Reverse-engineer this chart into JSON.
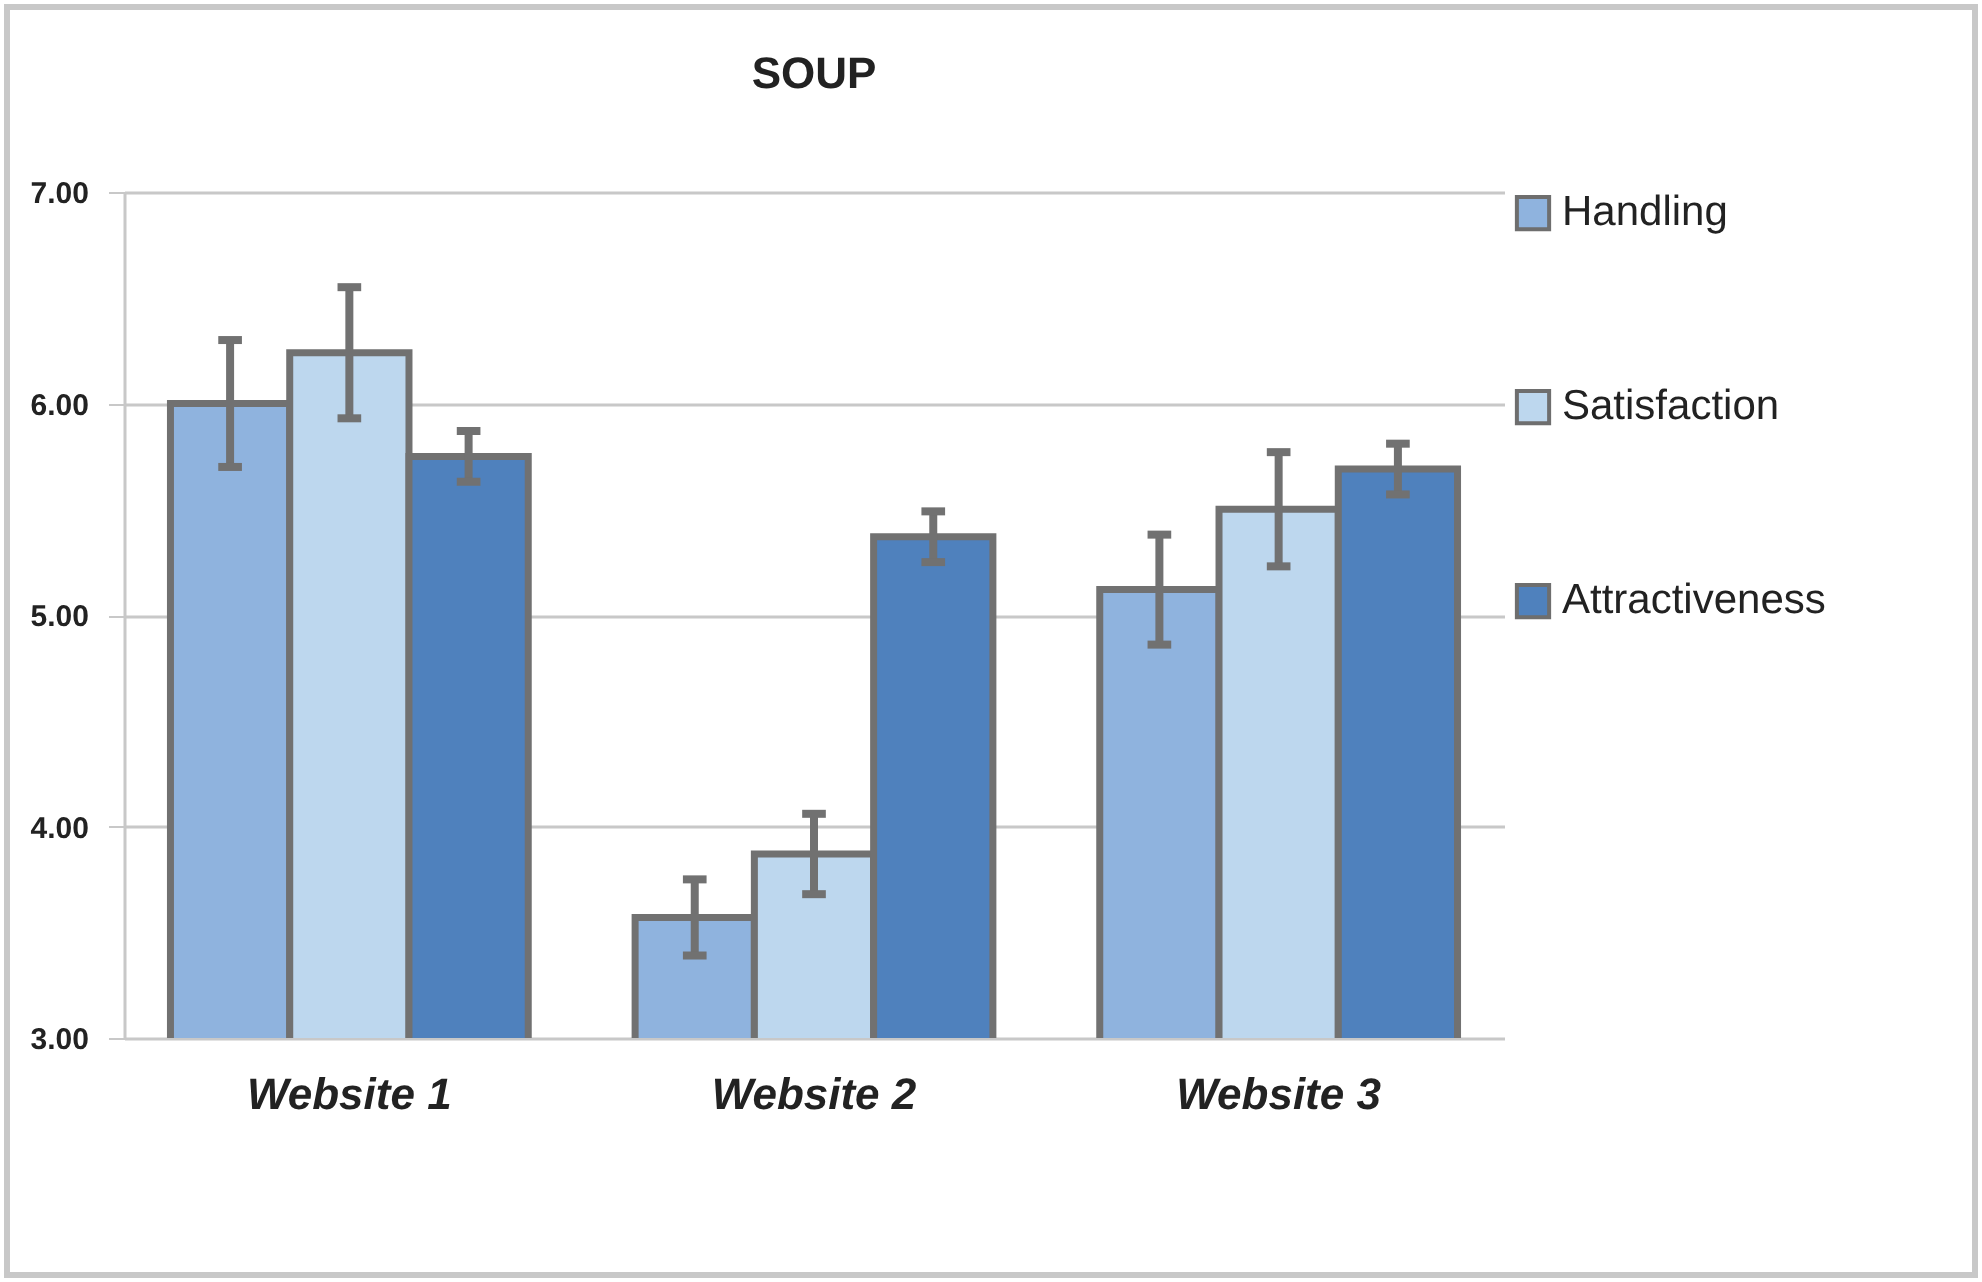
{
  "chart_data": {
    "type": "bar",
    "title": "SOUP",
    "categories": [
      "Website 1",
      "Website 2",
      "Website 3"
    ],
    "series": [
      {
        "name": "Handling",
        "color": "#8fb3de",
        "values": [
          6.0,
          3.57,
          5.12
        ],
        "errors": [
          0.3,
          0.18,
          0.26
        ]
      },
      {
        "name": "Satisfaction",
        "color": "#bdd7ee",
        "values": [
          6.24,
          3.87,
          5.5
        ],
        "errors": [
          0.31,
          0.19,
          0.27
        ]
      },
      {
        "name": "Attractiveness",
        "color": "#4f81bd",
        "values": [
          5.75,
          5.37,
          5.69
        ],
        "errors": [
          0.12,
          0.12,
          0.12
        ]
      }
    ],
    "ylim": [
      3,
      7
    ],
    "yticks": [
      {
        "value": 3,
        "label": "3.00"
      },
      {
        "value": 4,
        "label": "4.00"
      },
      {
        "value": 5,
        "label": "5.00"
      },
      {
        "value": 6,
        "label": "6.00"
      },
      {
        "value": 7,
        "label": "7.00"
      }
    ],
    "grid": "y",
    "legend": "right"
  }
}
